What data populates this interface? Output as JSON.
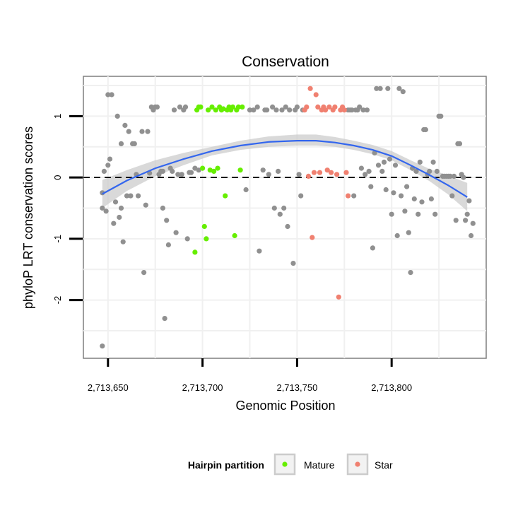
{
  "chart_data": {
    "type": "scatter",
    "title": "Conservation",
    "xlabel": "Genomic Position",
    "ylabel": "phyloP LRT conservation scores",
    "xlim": [
      2713637,
      2713850
    ],
    "ylim": [
      -2.95,
      1.65
    ],
    "x_ticks": [
      {
        "value": 2713650,
        "label": "2,713,650"
      },
      {
        "value": 2713700,
        "label": "2,713,700"
      },
      {
        "value": 2713750,
        "label": "2,713,750"
      },
      {
        "value": 2713800,
        "label": "2,713,800"
      }
    ],
    "y_ticks": [
      {
        "value": -2,
        "label": "-2"
      },
      {
        "value": -1,
        "label": "-1"
      },
      {
        "value": 0,
        "label": "0"
      },
      {
        "value": 1,
        "label": "1"
      }
    ],
    "grid": true,
    "reference_line": {
      "y": 0,
      "style": "dashed"
    },
    "legend": {
      "title": "Hairpin partition",
      "placement": "bottom",
      "entries": [
        {
          "name": "Mature",
          "color": "#66ee00"
        },
        {
          "name": "Star",
          "color": "#f08070"
        }
      ]
    },
    "colors": {
      "other": "#909090",
      "mature": "#66ee00",
      "star": "#f08070",
      "smooth": "#3366ee",
      "band": "#cccccc"
    },
    "series": [
      {
        "group": "other",
        "points": [
          [
            2713647,
            -0.25
          ],
          [
            2713647,
            -0.5
          ],
          [
            2713647,
            -2.75
          ],
          [
            2713648,
            0.1
          ],
          [
            2713649,
            -0.55
          ],
          [
            2713650,
            1.35
          ],
          [
            2713650,
            0.2
          ],
          [
            2713651,
            0.3
          ],
          [
            2713652,
            1.35
          ],
          [
            2713653,
            -0.75
          ],
          [
            2713654,
            -0.4
          ],
          [
            2713655,
            1.0
          ],
          [
            2713656,
            -0.65
          ],
          [
            2713657,
            -0.5
          ],
          [
            2713657,
            0.55
          ],
          [
            2713658,
            -1.05
          ],
          [
            2713659,
            0.85
          ],
          [
            2713660,
            -0.3
          ],
          [
            2713661,
            0.75
          ],
          [
            2713662,
            -0.3
          ],
          [
            2713663,
            0.55
          ],
          [
            2713664,
            0.55
          ],
          [
            2713665,
            0.05
          ],
          [
            2713666,
            -0.3
          ],
          [
            2713668,
            0.75
          ],
          [
            2713669,
            -1.55
          ],
          [
            2713670,
            -0.45
          ],
          [
            2713671,
            0.75
          ],
          [
            2713672,
            0.07
          ],
          [
            2713673,
            1.15
          ],
          [
            2713674,
            1.1
          ],
          [
            2713675,
            1.15
          ],
          [
            2713676,
            1.15
          ],
          [
            2713677,
            0.05
          ],
          [
            2713678,
            0.1
          ],
          [
            2713679,
            -0.5
          ],
          [
            2713679,
            0.1
          ],
          [
            2713680,
            -2.3
          ],
          [
            2713681,
            -0.7
          ],
          [
            2713682,
            -1.1
          ],
          [
            2713683,
            0.15
          ],
          [
            2713684,
            0.1
          ],
          [
            2713685,
            1.1
          ],
          [
            2713686,
            -0.9
          ],
          [
            2713687,
            0.05
          ],
          [
            2713688,
            1.15
          ],
          [
            2713689,
            0.05
          ],
          [
            2713690,
            1.1
          ],
          [
            2713691,
            1.15
          ],
          [
            2713692,
            -1.0
          ],
          [
            2713693,
            0.08
          ],
          [
            2713694,
            0.08
          ],
          [
            2713696,
            0.15
          ],
          [
            2713698,
            0.12
          ],
          [
            2713723,
            -0.2
          ],
          [
            2713725,
            1.1
          ],
          [
            2713727,
            1.1
          ],
          [
            2713729,
            1.15
          ],
          [
            2713730,
            -1.2
          ],
          [
            2713732,
            0.12
          ],
          [
            2713733,
            1.1
          ],
          [
            2713734,
            1.1
          ],
          [
            2713735,
            0.05
          ],
          [
            2713737,
            1.15
          ],
          [
            2713738,
            -0.5
          ],
          [
            2713739,
            1.1
          ],
          [
            2713740,
            0.1
          ],
          [
            2713741,
            -0.6
          ],
          [
            2713742,
            1.1
          ],
          [
            2713743,
            -0.5
          ],
          [
            2713744,
            1.15
          ],
          [
            2713745,
            -0.8
          ],
          [
            2713746,
            1.1
          ],
          [
            2713748,
            -1.4
          ],
          [
            2713749,
            1.1
          ],
          [
            2713750,
            1.15
          ],
          [
            2713751,
            0.05
          ],
          [
            2713752,
            -0.3
          ],
          [
            2713753,
            1.1
          ],
          [
            2713777,
            1.1
          ],
          [
            2713778,
            1.1
          ],
          [
            2713779,
            1.1
          ],
          [
            2713780,
            -0.3
          ],
          [
            2713781,
            1.1
          ],
          [
            2713782,
            1.1
          ],
          [
            2713783,
            1.15
          ],
          [
            2713784,
            0.15
          ],
          [
            2713785,
            1.1
          ],
          [
            2713786,
            0.05
          ],
          [
            2713787,
            1.1
          ],
          [
            2713788,
            0.1
          ],
          [
            2713789,
            -0.15
          ],
          [
            2713790,
            -1.15
          ],
          [
            2713791,
            0.4
          ],
          [
            2713792,
            1.45
          ],
          [
            2713793,
            0.2
          ],
          [
            2713794,
            1.45
          ],
          [
            2713795,
            0.1
          ],
          [
            2713796,
            0.25
          ],
          [
            2713797,
            -0.2
          ],
          [
            2713798,
            1.45
          ],
          [
            2713799,
            0.3
          ],
          [
            2713800,
            -0.6
          ],
          [
            2713801,
            -0.25
          ],
          [
            2713802,
            0.2
          ],
          [
            2713803,
            -0.95
          ],
          [
            2713804,
            1.45
          ],
          [
            2713805,
            -0.3
          ],
          [
            2713806,
            1.4
          ],
          [
            2713807,
            -0.55
          ],
          [
            2713808,
            -0.15
          ],
          [
            2713809,
            -0.9
          ],
          [
            2713810,
            -1.55
          ],
          [
            2713811,
            0.15
          ],
          [
            2713812,
            -0.35
          ],
          [
            2713813,
            0.1
          ],
          [
            2713814,
            -0.6
          ],
          [
            2713815,
            0.25
          ],
          [
            2713816,
            -0.4
          ],
          [
            2713817,
            0.78
          ],
          [
            2713818,
            0.78
          ],
          [
            2713819,
            0.05
          ],
          [
            2713820,
            0.1
          ],
          [
            2713821,
            -0.35
          ],
          [
            2713822,
            0.25
          ],
          [
            2713823,
            -0.6
          ],
          [
            2713824,
            0.1
          ],
          [
            2713825,
            1.0
          ],
          [
            2713826,
            1.0
          ],
          [
            2713827,
            0.02
          ],
          [
            2713828,
            0.02
          ],
          [
            2713829,
            0.02
          ],
          [
            2713830,
            0.02
          ],
          [
            2713831,
            0.02
          ],
          [
            2713832,
            -0.3
          ],
          [
            2713833,
            0.02
          ],
          [
            2713834,
            -0.7
          ],
          [
            2713835,
            0.55
          ],
          [
            2713836,
            0.55
          ],
          [
            2713837,
            0.05
          ],
          [
            2713838,
            0.0
          ],
          [
            2713839,
            -0.7
          ],
          [
            2713840,
            -0.6
          ],
          [
            2713841,
            -0.38
          ],
          [
            2713842,
            -0.95
          ],
          [
            2713843,
            -0.75
          ]
        ]
      },
      {
        "group": "mature",
        "points": [
          [
            2713696,
            -1.22
          ],
          [
            2713697,
            1.1
          ],
          [
            2713698,
            1.15
          ],
          [
            2713699,
            1.15
          ],
          [
            2713700,
            0.15
          ],
          [
            2713701,
            -0.8
          ],
          [
            2713702,
            -1.0
          ],
          [
            2713703,
            1.1
          ],
          [
            2713704,
            0.12
          ],
          [
            2713705,
            1.15
          ],
          [
            2713706,
            0.1
          ],
          [
            2713707,
            1.1
          ],
          [
            2713708,
            0.15
          ],
          [
            2713709,
            1.15
          ],
          [
            2713710,
            1.1
          ],
          [
            2713711,
            1.12
          ],
          [
            2713712,
            -0.3
          ],
          [
            2713713,
            1.1
          ],
          [
            2713714,
            1.15
          ],
          [
            2713715,
            1.1
          ],
          [
            2713716,
            1.15
          ],
          [
            2713717,
            -0.95
          ],
          [
            2713718,
            1.1
          ],
          [
            2713719,
            1.15
          ],
          [
            2713720,
            0.12
          ],
          [
            2713721,
            1.15
          ]
        ]
      },
      {
        "group": "star",
        "points": [
          [
            2713754,
            1.1
          ],
          [
            2713755,
            1.15
          ],
          [
            2713756,
            0.02
          ],
          [
            2713757,
            1.45
          ],
          [
            2713758,
            -0.98
          ],
          [
            2713759,
            0.08
          ],
          [
            2713760,
            1.35
          ],
          [
            2713761,
            1.15
          ],
          [
            2713762,
            0.08
          ],
          [
            2713763,
            1.1
          ],
          [
            2713764,
            1.15
          ],
          [
            2713765,
            1.1
          ],
          [
            2713766,
            0.12
          ],
          [
            2713767,
            1.15
          ],
          [
            2713768,
            0.08
          ],
          [
            2713769,
            1.1
          ],
          [
            2713770,
            1.15
          ],
          [
            2713771,
            0.05
          ],
          [
            2713772,
            -1.95
          ],
          [
            2713773,
            1.1
          ],
          [
            2713774,
            1.15
          ],
          [
            2713775,
            1.1
          ],
          [
            2713776,
            0.08
          ],
          [
            2713777,
            -0.3
          ]
        ]
      }
    ],
    "smooth": {
      "x": [
        2713647,
        2713660,
        2713675,
        2713690,
        2713705,
        2713720,
        2713735,
        2713750,
        2713760,
        2713770,
        2713780,
        2713790,
        2713800,
        2713810,
        2713820,
        2713830,
        2713840
      ],
      "y": [
        -0.27,
        -0.05,
        0.15,
        0.3,
        0.43,
        0.52,
        0.58,
        0.6,
        0.6,
        0.57,
        0.52,
        0.45,
        0.35,
        0.2,
        0.04,
        -0.13,
        -0.32
      ],
      "lower": [
        -0.5,
        -0.22,
        0.02,
        0.2,
        0.36,
        0.45,
        0.5,
        0.52,
        0.52,
        0.5,
        0.45,
        0.38,
        0.28,
        0.12,
        -0.06,
        -0.28,
        -0.55
      ],
      "upper": [
        -0.04,
        0.12,
        0.28,
        0.4,
        0.5,
        0.6,
        0.67,
        0.7,
        0.7,
        0.66,
        0.6,
        0.53,
        0.43,
        0.28,
        0.14,
        0.03,
        -0.09
      ]
    }
  }
}
